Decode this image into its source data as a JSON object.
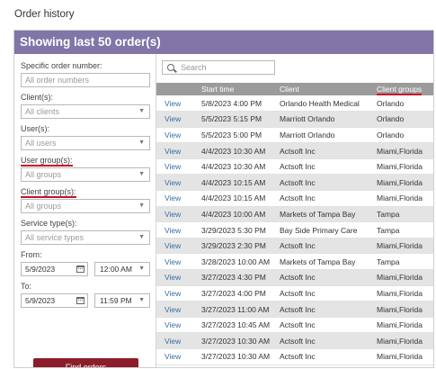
{
  "page": {
    "title": "Order history"
  },
  "panel": {
    "header": "Showing last 50 order(s)"
  },
  "filters": {
    "order_number": {
      "label": "Specific order number:",
      "placeholder": "All order numbers"
    },
    "clients": {
      "label": "Client(s):",
      "value": "All clients"
    },
    "users": {
      "label": "User(s):",
      "value": "All users"
    },
    "user_groups": {
      "label": "User group(s):",
      "value": "All groups"
    },
    "client_groups": {
      "label": "Client group(s):",
      "value": "All groups"
    },
    "service_types": {
      "label": "Service type(s):",
      "value": "All service types"
    },
    "from": {
      "label": "From:",
      "date": "5/9/2023",
      "time": "12:00 AM"
    },
    "to": {
      "label": "To:",
      "date": "5/9/2023",
      "time": "11:59 PM"
    },
    "find_button": "Find orders"
  },
  "search": {
    "placeholder": "Search"
  },
  "table": {
    "headers": [
      "",
      "Start time",
      "Client",
      "Client groups"
    ],
    "rows": [
      {
        "action": "View",
        "start": "5/8/2023 4:00 PM",
        "client": "Orlando Health Medical",
        "groups": "Orlando"
      },
      {
        "action": "View",
        "start": "5/5/2023 5:15 PM",
        "client": "Marriott Orlando",
        "groups": "Orlando"
      },
      {
        "action": "View",
        "start": "5/5/2023 5:00 PM",
        "client": "Marriott Orlando",
        "groups": "Orlando"
      },
      {
        "action": "View",
        "start": "4/4/2023 10:30 AM",
        "client": "Actsoft Inc",
        "groups": "Miami,Florida"
      },
      {
        "action": "View",
        "start": "4/4/2023 10:30 AM",
        "client": "Actsoft Inc",
        "groups": "Miami,Florida"
      },
      {
        "action": "View",
        "start": "4/4/2023 10:15 AM",
        "client": "Actsoft Inc",
        "groups": "Miami,Florida"
      },
      {
        "action": "View",
        "start": "4/4/2023 10:15 AM",
        "client": "Actsoft Inc",
        "groups": "Miami,Florida"
      },
      {
        "action": "View",
        "start": "4/4/2023 10:00 AM",
        "client": "Markets of Tampa Bay",
        "groups": "Tampa"
      },
      {
        "action": "View",
        "start": "3/29/2023 5:30 PM",
        "client": "Bay Side Primary Care",
        "groups": "Tampa"
      },
      {
        "action": "View",
        "start": "3/29/2023 2:30 PM",
        "client": "Actsoft Inc",
        "groups": "Miami,Florida"
      },
      {
        "action": "View",
        "start": "3/28/2023 10:00 AM",
        "client": "Markets of Tampa Bay",
        "groups": "Tampa"
      },
      {
        "action": "View",
        "start": "3/27/2023 4:30 PM",
        "client": "Actsoft Inc",
        "groups": "Miami,Florida"
      },
      {
        "action": "View",
        "start": "3/27/2023 4:00 PM",
        "client": "Actsoft Inc",
        "groups": "Miami,Florida"
      },
      {
        "action": "View",
        "start": "3/27/2023 11:00 AM",
        "client": "Actsoft Inc",
        "groups": "Miami,Florida"
      },
      {
        "action": "View",
        "start": "3/27/2023 10:45 AM",
        "client": "Actsoft Inc",
        "groups": "Miami,Florida"
      },
      {
        "action": "View",
        "start": "3/27/2023 10:30 AM",
        "client": "Actsoft Inc",
        "groups": "Miami,Florida"
      },
      {
        "action": "View",
        "start": "3/27/2023 10:30 AM",
        "client": "Actsoft Inc",
        "groups": "Miami,Florida"
      }
    ]
  },
  "colors": {
    "header_bg": "#8275a8",
    "button_bg": "#8c1d2b",
    "table_header_bg": "#9b9b9b",
    "link": "#3b6ea5",
    "highlight": "#c8102e"
  },
  "icons": [
    "search-icon",
    "calendar-icon",
    "chevron-down-icon"
  ]
}
